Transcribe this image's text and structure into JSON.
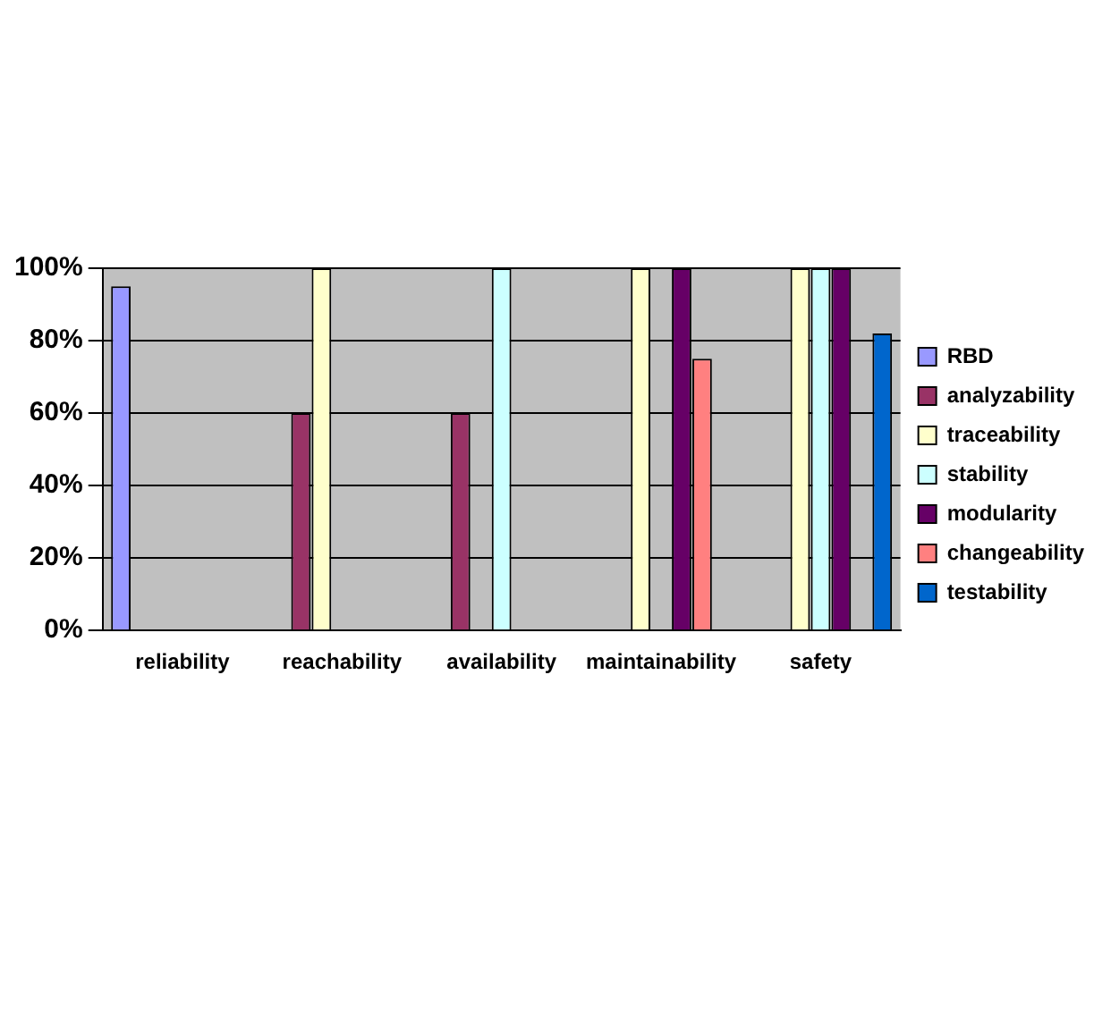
{
  "chart_data": {
    "type": "bar",
    "categories": [
      "reliability",
      "reachability",
      "availability",
      "maintainability",
      "safety"
    ],
    "series": [
      {
        "name": "RBD",
        "color": "#9999ff",
        "values": [
          95,
          null,
          null,
          null,
          null
        ]
      },
      {
        "name": "analyzability",
        "color": "#993366",
        "values": [
          null,
          60,
          60,
          null,
          null
        ]
      },
      {
        "name": "traceability",
        "color": "#ffffcc",
        "values": [
          null,
          100,
          null,
          100,
          100
        ]
      },
      {
        "name": "stability",
        "color": "#ccffff",
        "values": [
          null,
          null,
          100,
          null,
          100
        ]
      },
      {
        "name": "modularity",
        "color": "#660066",
        "values": [
          null,
          null,
          null,
          100,
          100
        ]
      },
      {
        "name": "changeability",
        "color": "#ff8080",
        "values": [
          null,
          null,
          null,
          75,
          null
        ]
      },
      {
        "name": "testability",
        "color": "#0066cc",
        "values": [
          null,
          null,
          null,
          null,
          82
        ]
      }
    ],
    "ylim": [
      0,
      100
    ],
    "yticks": [
      {
        "value": 0,
        "label": "0%"
      },
      {
        "value": 20,
        "label": "20%"
      },
      {
        "value": 40,
        "label": "40%"
      },
      {
        "value": 60,
        "label": "60%"
      },
      {
        "value": 80,
        "label": "80%"
      },
      {
        "value": 100,
        "label": "100%"
      }
    ],
    "grid": "y",
    "legend": "right"
  }
}
